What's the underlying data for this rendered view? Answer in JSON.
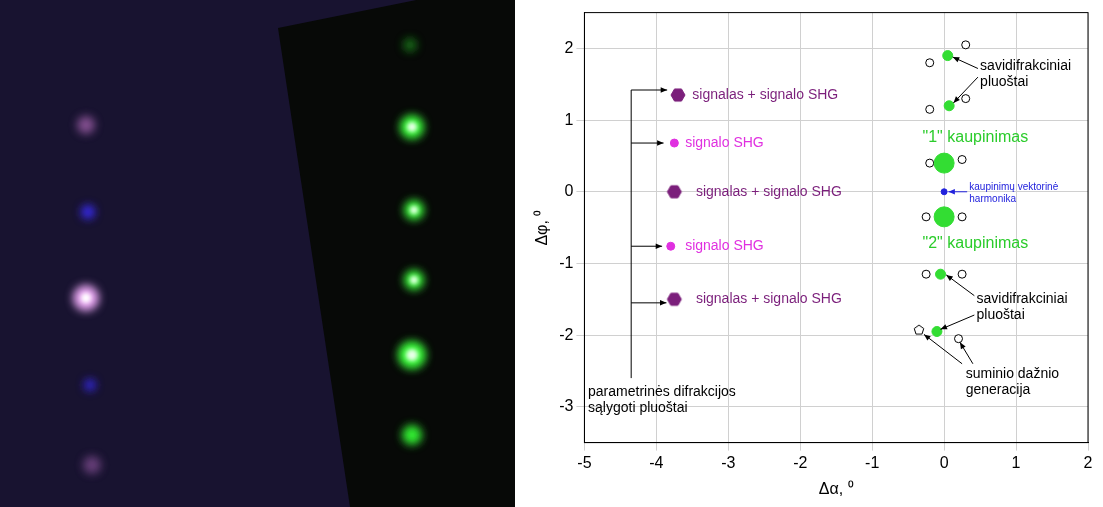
{
  "chart_data": {
    "type": "scatter",
    "xlabel": "Δα, ⁰",
    "ylabel": "Δφ, ⁰",
    "xlim": [
      -5,
      2
    ],
    "xticks": [
      -5,
      -4,
      -3,
      -2,
      -1,
      0,
      1,
      2
    ],
    "ylim": [
      -3.5,
      2.5
    ],
    "yticks": [
      -3,
      -2,
      -1,
      0,
      1,
      2
    ],
    "grid": true,
    "series": [
      {
        "color": "#7b1f7b",
        "marker": "hexagon",
        "x": [
          -3.7,
          -3.75,
          -3.75
        ],
        "y": [
          1.35,
          0,
          -1.5
        ]
      },
      {
        "color": "#e030e0",
        "marker": "circle",
        "x": [
          -3.75,
          -3.8
        ],
        "y": [
          0.68,
          -0.76
        ]
      },
      {
        "color": "#33dd33",
        "marker": "circle",
        "x": [
          0.05,
          0.07,
          -0.05,
          -0.1
        ],
        "y": [
          1.9,
          1.2,
          -1.15,
          -1.95
        ]
      },
      {
        "color": "#33dd33",
        "marker": "circle",
        "x": [
          0,
          0
        ],
        "y": [
          0.4,
          -0.35
        ]
      },
      {
        "color": "#2222dd",
        "marker": "circle",
        "x": [
          0
        ],
        "y": [
          0
        ]
      },
      {
        "color": "#000000",
        "marker": "open_circle",
        "x": [
          0.3,
          -0.2,
          -0.2,
          0.3,
          -0.2,
          0.25,
          -0.25,
          0.25,
          -0.25,
          0.25,
          0.2
        ],
        "y": [
          2.05,
          1.8,
          1.15,
          1.3,
          0.4,
          0.45,
          -0.35,
          -0.35,
          -1.15,
          -1.15,
          -2.05
        ]
      },
      {
        "color": "#000000",
        "marker": "open_pentagon",
        "x": [
          -0.35
        ],
        "y": [
          -1.93
        ]
      }
    ],
    "annotations": [
      {
        "text": "savidifrakciniai\npluoštai",
        "x": 0.5,
        "y": 1.75,
        "color": "#000000"
      },
      {
        "text": "savidifrakciniai\npluoštai",
        "x": 0.45,
        "y": -1.5,
        "color": "#000000"
      },
      {
        "text": "\"1\" kaupinimas",
        "x": -0.3,
        "y": 0.75,
        "color": "#2bcc2b"
      },
      {
        "text": "\"2\" kaupinimas",
        "x": -0.3,
        "y": -0.72,
        "color": "#2bcc2b"
      },
      {
        "text": "kaupinimų vektorinė\nharmonika",
        "x": 0.35,
        "y": 0.06,
        "color": "#2222dd"
      },
      {
        "text": "signalas + signalo SHG",
        "x": -3.5,
        "y": 1.35,
        "color": "#7b1f7b"
      },
      {
        "text": "signalas + signalo SHG",
        "x": -3.45,
        "y": 0,
        "color": "#7b1f7b"
      },
      {
        "text": "signalas + signalo SHG",
        "x": -3.45,
        "y": -1.5,
        "color": "#7b1f7b"
      },
      {
        "text": "signalo SHG",
        "x": -3.6,
        "y": 0.68,
        "color": "#e030e0"
      },
      {
        "text": "signalo SHG",
        "x": -3.6,
        "y": -0.76,
        "color": "#e030e0"
      },
      {
        "text": "parametrinės difrakcijos\nsąlygoti pluoštai",
        "x": -4.95,
        "y": -2.8,
        "color": "#000000"
      },
      {
        "text": "suminio dažnio\ngeneracija",
        "x": 0.3,
        "y": -2.55,
        "color": "#000000"
      }
    ]
  }
}
